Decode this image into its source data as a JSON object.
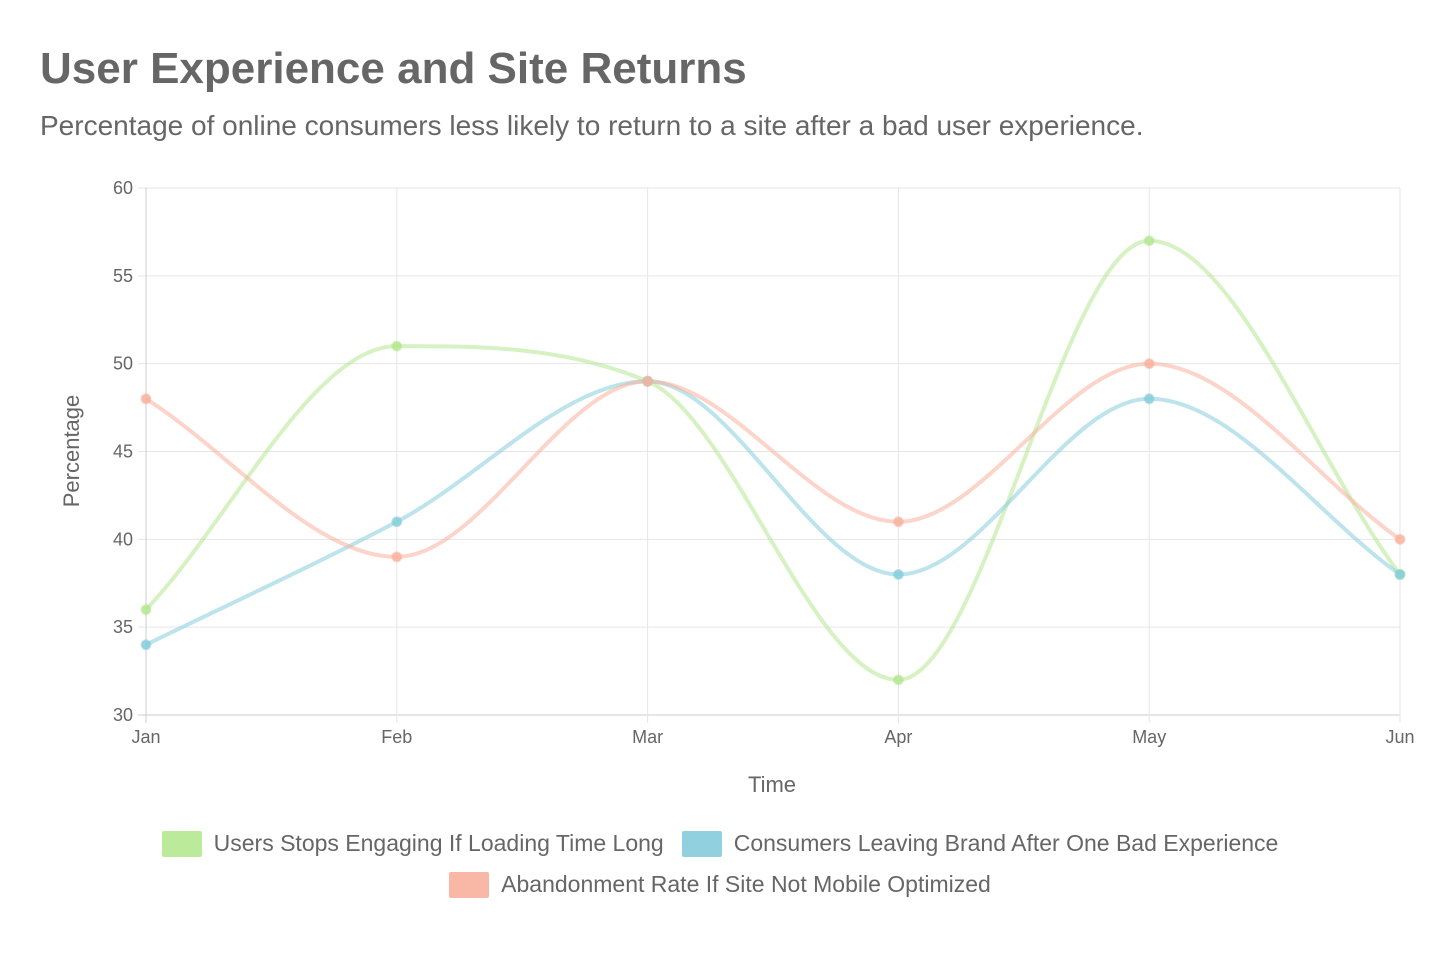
{
  "chart_data": {
    "type": "line",
    "title": "User Experience and Site Returns",
    "subtitle": "Percentage of online consumers less likely to return to a site after a bad user experience.",
    "xlabel": "Time",
    "ylabel": "Percentage",
    "categories": [
      "Jan",
      "Feb",
      "Mar",
      "Apr",
      "May",
      "Jun"
    ],
    "ylim": [
      30,
      60
    ],
    "yticks": [
      30,
      35,
      40,
      45,
      50,
      55,
      60
    ],
    "grid": true,
    "legend_position": "bottom",
    "series": [
      {
        "name": "Users Stops Engaging If Loading Time Long",
        "values": [
          36,
          51,
          49,
          32,
          57,
          38
        ],
        "color": "#b4e891"
      },
      {
        "name": "Consumers Leaving Brand After One Bad Experience",
        "values": [
          34,
          41,
          49,
          38,
          48,
          38
        ],
        "color": "#86cddc"
      },
      {
        "name": "Abandonment Rate If Site Not Mobile Optimized",
        "values": [
          48,
          39,
          49,
          41,
          50,
          40
        ],
        "color": "#f9b19d"
      }
    ]
  }
}
